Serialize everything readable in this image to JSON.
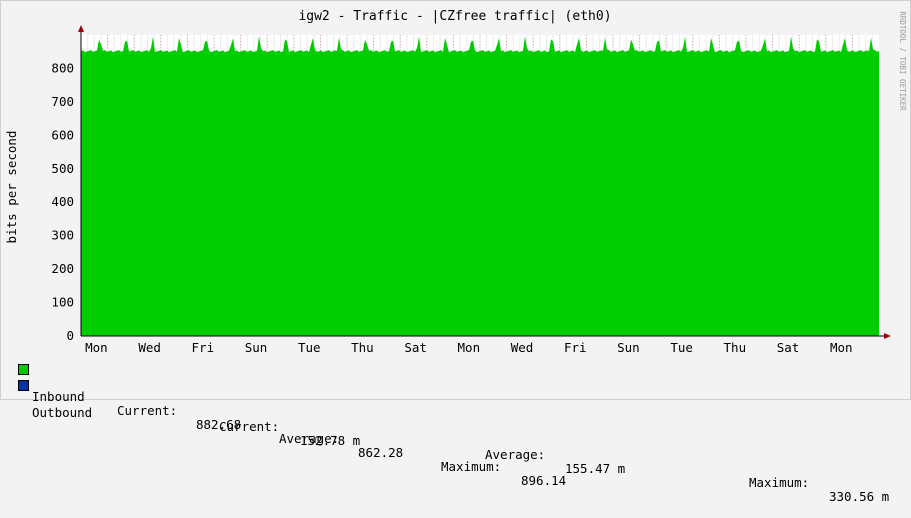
{
  "chart_data": {
    "type": "area",
    "title": "igw2 - Traffic - |CZfree traffic| (eth0)",
    "ylabel": "bits per second",
    "xlabel": "",
    "watermark": "RRDTOOL / TOBI OETIKER",
    "ylim": [
      0,
      900
    ],
    "yticks": [
      0,
      100,
      200,
      300,
      400,
      500,
      600,
      700,
      800
    ],
    "x_tick_labels": [
      "Mon",
      "Wed",
      "Fri",
      "Sun",
      "Tue",
      "Thu",
      "Sat",
      "Mon",
      "Wed",
      "Fri",
      "Sun",
      "Tue",
      "Thu",
      "Sat",
      "Mon"
    ],
    "grid": true,
    "daily_pattern": {
      "days": 30,
      "baseline": 852,
      "peak": 893,
      "mean": 862.28
    },
    "series": [
      {
        "name": "Inbound",
        "color": "#00cc00",
        "current": "882.68",
        "average": "862.28",
        "maximum": "896.14"
      },
      {
        "name": "Outbound",
        "color": "#0033aa",
        "current": "152.78 m",
        "average": "155.47 m",
        "maximum": "330.56 m"
      }
    ]
  },
  "legend": {
    "current_label": "Current:",
    "average_label": "Average:",
    "maximum_label": "Maximum:"
  }
}
